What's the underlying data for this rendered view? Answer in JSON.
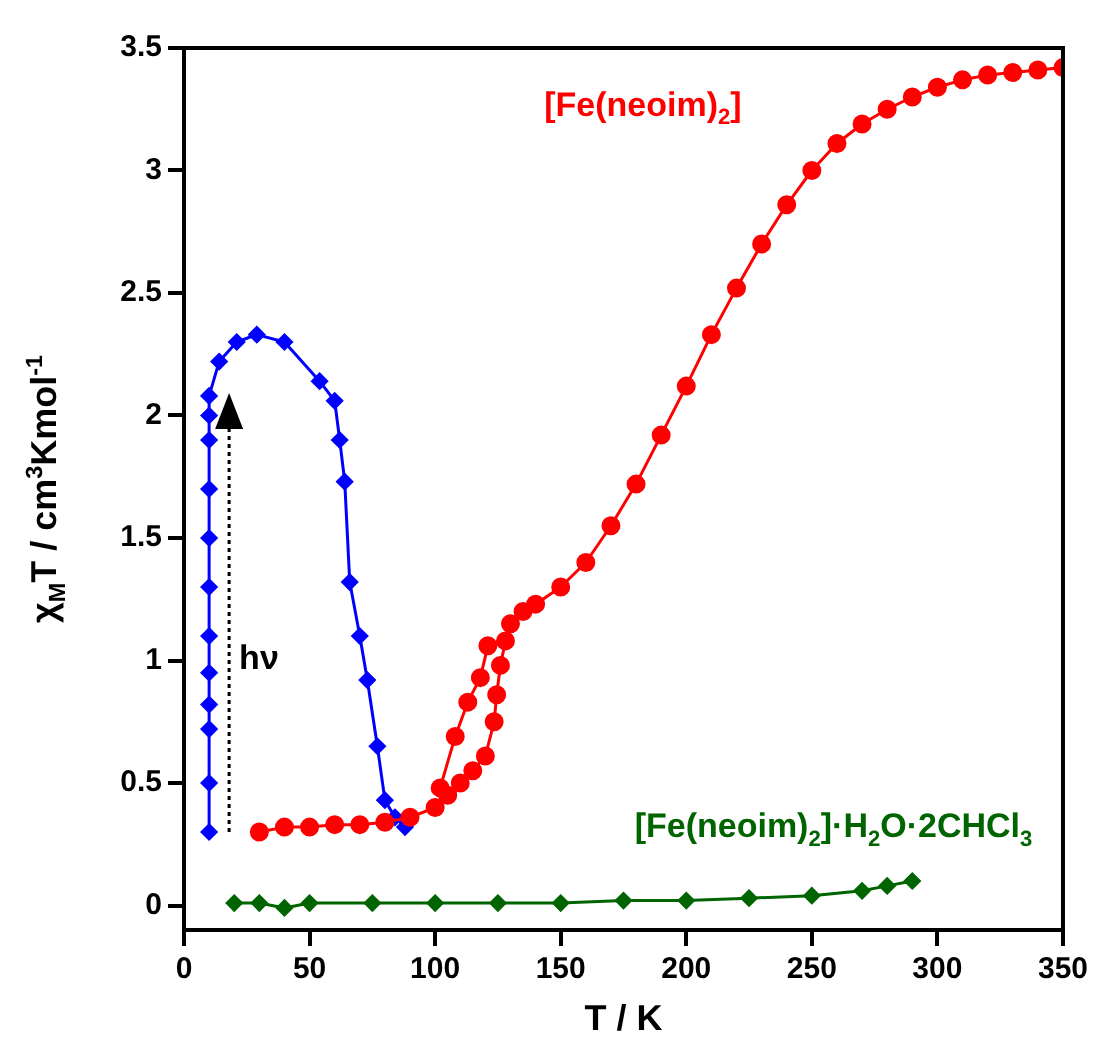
{
  "chart_data": {
    "type": "line",
    "xlabel": "T / K",
    "ylabel": "χ$_{M}$T / cm$^{3}$Kmol$^{-1}$",
    "xlim": [
      0,
      350
    ],
    "xticks": [
      0,
      50,
      100,
      150,
      200,
      250,
      300,
      350
    ],
    "ylim": [
      -0.1,
      3.5
    ],
    "yticks": [
      0,
      0.5,
      1,
      1.5,
      2,
      2.5,
      3,
      3.5
    ],
    "grid": false,
    "legend": false,
    "annotations": [
      "hν"
    ],
    "series": [
      {
        "name": "[Fe(neoim)$_{2}$]",
        "color": "#ff0000",
        "marker": "circle",
        "x": [
          30,
          40,
          50,
          60,
          70,
          80,
          90,
          100,
          105,
          110,
          115,
          120,
          123.5,
          124.5,
          126,
          128,
          130,
          135,
          140,
          150,
          160,
          170,
          180,
          190,
          200,
          210,
          220,
          230,
          240,
          250,
          260,
          270,
          280,
          290,
          300,
          310,
          320,
          330,
          340,
          350
        ],
        "values": [
          0.3,
          0.32,
          0.32,
          0.33,
          0.33,
          0.34,
          0.36,
          0.4,
          0.45,
          0.5,
          0.55,
          0.61,
          0.75,
          0.86,
          0.98,
          1.08,
          1.15,
          1.2,
          1.23,
          1.3,
          1.4,
          1.55,
          1.72,
          1.92,
          2.12,
          2.33,
          2.52,
          2.7,
          2.86,
          3.0,
          3.11,
          3.19,
          3.25,
          3.3,
          3.34,
          3.37,
          3.39,
          3.4,
          3.41,
          3.42
        ]
      },
      {
        "color": "#ff0000",
        "marker": "circle",
        "x": [
          121,
          118,
          113,
          108,
          102
        ],
        "values": [
          1.06,
          0.93,
          0.83,
          0.69,
          0.48
        ]
      },
      {
        "color": "#0000ff",
        "marker": "diamond",
        "x": [
          10,
          10,
          10,
          10,
          10,
          10,
          10,
          10,
          10,
          10,
          10,
          10,
          14,
          21,
          29,
          40,
          54,
          60,
          62,
          64,
          66,
          70,
          73,
          77,
          80,
          84,
          88
        ],
        "values": [
          0.3,
          0.5,
          0.72,
          0.82,
          0.95,
          1.1,
          1.3,
          1.5,
          1.7,
          1.9,
          2.0,
          2.08,
          2.22,
          2.3,
          2.33,
          2.3,
          2.14,
          2.06,
          1.9,
          1.73,
          1.32,
          1.1,
          0.92,
          0.65,
          0.43,
          0.36,
          0.32
        ]
      },
      {
        "name": "[Fe(neoim)$_{2}$]·H$_{2}$O·2CHCl$_{3}$",
        "color": "#006400",
        "marker": "diamond",
        "x": [
          20,
          30,
          40,
          50,
          75,
          100,
          125,
          150,
          175,
          200,
          225,
          250,
          270,
          280,
          290
        ],
        "values": [
          0.01,
          0.01,
          -0.01,
          0.01,
          0.01,
          0.01,
          0.01,
          0.01,
          0.02,
          0.02,
          0.03,
          0.04,
          0.06,
          0.08,
          0.1
        ]
      }
    ]
  }
}
